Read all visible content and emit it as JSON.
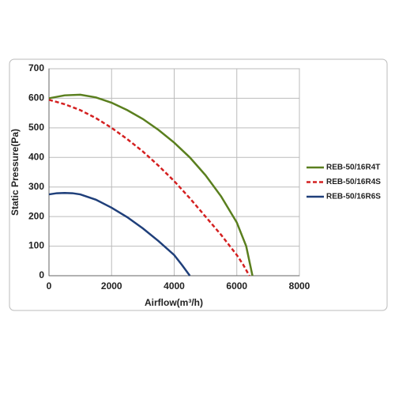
{
  "chart_data": {
    "type": "line",
    "x_label": "Airflow(m³/h)",
    "y_label": "Static Pressure(Pa)",
    "xlim": [
      0,
      8000
    ],
    "xticks": [
      0,
      2000,
      4000,
      6000,
      8000
    ],
    "ylim": [
      0,
      700
    ],
    "yticks": [
      0,
      100,
      200,
      300,
      400,
      500,
      600,
      700
    ],
    "grid": true,
    "legend": "right",
    "series": [
      {
        "name": "REB-50/16R4T",
        "color": "#5a7f1e",
        "line_style": "solid",
        "x": [
          0,
          500,
          1000,
          1500,
          2000,
          2500,
          3000,
          3500,
          4000,
          4500,
          5000,
          5500,
          6000,
          6300,
          6500
        ],
        "values": [
          600,
          610,
          612,
          603,
          585,
          560,
          530,
          493,
          450,
          400,
          340,
          268,
          180,
          100,
          0
        ]
      },
      {
        "name": "REB-50/16R4S",
        "color": "#d42020",
        "line_style": "dashed",
        "x": [
          0,
          500,
          1000,
          1500,
          2000,
          2500,
          3000,
          3500,
          4000,
          4500,
          5000,
          5500,
          6000,
          6200,
          6400
        ],
        "values": [
          595,
          580,
          560,
          533,
          500,
          462,
          420,
          372,
          320,
          262,
          200,
          138,
          70,
          38,
          0
        ]
      },
      {
        "name": "REB-50/16R6S",
        "color": "#1f3f7a",
        "line_style": "solid",
        "x": [
          0,
          250,
          500,
          750,
          1000,
          1500,
          2000,
          2500,
          3000,
          3500,
          4000,
          4250,
          4500
        ],
        "values": [
          275,
          279,
          280,
          279,
          275,
          257,
          230,
          198,
          160,
          117,
          70,
          36,
          0
        ]
      }
    ]
  }
}
